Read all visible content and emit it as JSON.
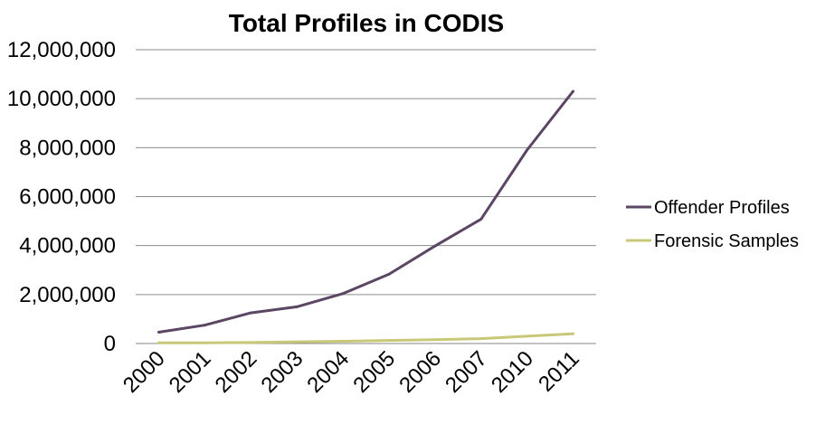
{
  "chart_data": {
    "type": "line",
    "title": "Total Profiles in CODIS",
    "xlabel": "",
    "ylabel": "",
    "categories": [
      "2000",
      "2001",
      "2002",
      "2003",
      "2004",
      "2005",
      "2006",
      "2007",
      "2010",
      "2011"
    ],
    "series": [
      {
        "name": "Offender Profiles",
        "color": "#5b4663",
        "values": [
          460000,
          750000,
          1250000,
          1500000,
          2040000,
          2830000,
          3980000,
          5080000,
          7900000,
          10300000
        ]
      },
      {
        "name": "Forensic Samples",
        "color": "#c8c878",
        "values": [
          25000,
          30000,
          40000,
          70000,
          93000,
          125000,
          160000,
          198000,
          300000,
          400000
        ]
      }
    ],
    "ylim": [
      0,
      12000000
    ],
    "yticks": [
      0,
      2000000,
      4000000,
      6000000,
      8000000,
      10000000,
      12000000
    ],
    "ytick_labels": [
      "0",
      "2,000,000",
      "4,000,000",
      "6,000,000",
      "8,000,000",
      "10,000,000",
      "12,000,000"
    ],
    "grid": true,
    "legend": "right"
  }
}
